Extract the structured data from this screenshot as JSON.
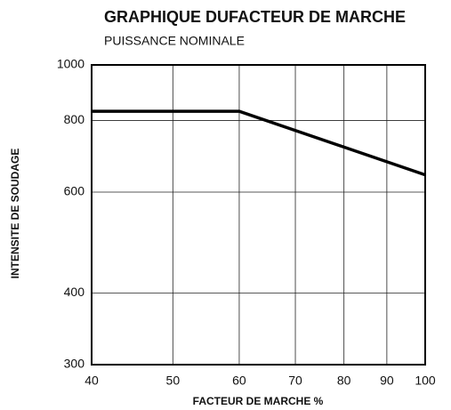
{
  "chart_data": {
    "type": "line",
    "title": "GRAPHIQUE DUFACTEUR DE MARCHE",
    "subtitle": "PUISSANCE NOMINALE",
    "x_label": "FACTEUR DE MARCHE %",
    "y_label": "INTENSITE DE SOUDAGE",
    "x": [
      40,
      60,
      100
    ],
    "series": [
      {
        "name": "PUISSANCE NOMINALE",
        "color": "#000000",
        "values": [
          830,
          830,
          643
        ]
      }
    ],
    "xlim": [
      40,
      100
    ],
    "xticks": [
      40,
      50,
      60,
      70,
      80,
      90,
      100
    ],
    "ylim": [
      300,
      1000
    ],
    "yticks": [
      300,
      400,
      600,
      800,
      1000
    ],
    "xscale": "log",
    "yscale": "log",
    "grid": true
  }
}
